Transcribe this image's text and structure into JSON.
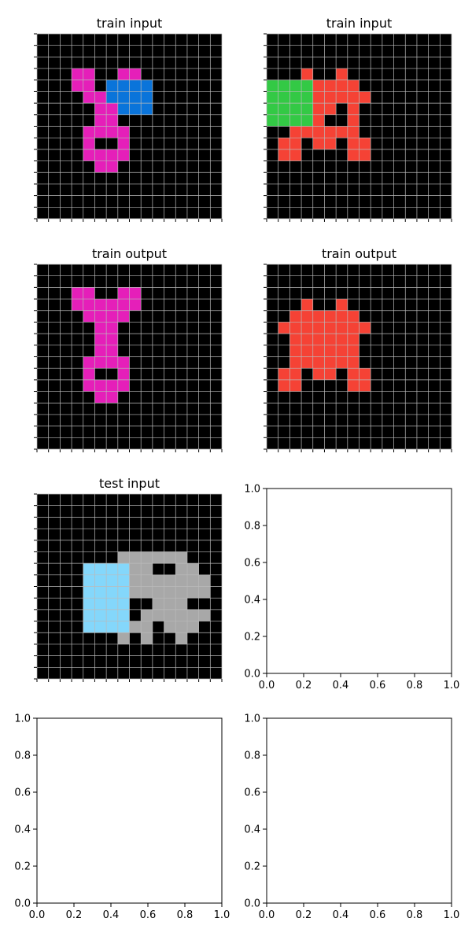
{
  "colors": {
    "background": "#000000",
    "grid_line": "#bbbbbb",
    "magenta": "#e51fb9",
    "blue": "#0a74da",
    "red": "#f54235",
    "green": "#33c945",
    "gray": "#a8a8a8",
    "light_blue": "#84d7fb"
  },
  "grid_size": 16,
  "panels": [
    {
      "title": "train input",
      "cells": {
        "magenta": [
          [
            3,
            3
          ],
          [
            3,
            4
          ],
          [
            3,
            7
          ],
          [
            3,
            8
          ],
          [
            4,
            3
          ],
          [
            4,
            4
          ],
          [
            5,
            4
          ],
          [
            5,
            5
          ],
          [
            6,
            5
          ],
          [
            6,
            6
          ],
          [
            7,
            5
          ],
          [
            7,
            6
          ],
          [
            8,
            4
          ],
          [
            8,
            5
          ],
          [
            8,
            6
          ],
          [
            8,
            7
          ],
          [
            9,
            4
          ],
          [
            9,
            7
          ],
          [
            10,
            4
          ],
          [
            10,
            5
          ],
          [
            10,
            6
          ],
          [
            10,
            7
          ],
          [
            11,
            5
          ],
          [
            11,
            6
          ]
        ],
        "blue": [
          [
            4,
            6
          ],
          [
            4,
            7
          ],
          [
            4,
            8
          ],
          [
            4,
            9
          ],
          [
            5,
            6
          ],
          [
            5,
            7
          ],
          [
            5,
            8
          ],
          [
            5,
            9
          ],
          [
            6,
            7
          ],
          [
            6,
            8
          ],
          [
            6,
            9
          ]
        ]
      }
    },
    {
      "title": "train input",
      "cells": {
        "red": [
          [
            3,
            3
          ],
          [
            3,
            6
          ],
          [
            4,
            4
          ],
          [
            4,
            5
          ],
          [
            4,
            6
          ],
          [
            4,
            7
          ],
          [
            5,
            4
          ],
          [
            5,
            5
          ],
          [
            5,
            6
          ],
          [
            5,
            7
          ],
          [
            5,
            8
          ],
          [
            6,
            4
          ],
          [
            6,
            5
          ],
          [
            6,
            7
          ],
          [
            7,
            4
          ],
          [
            7,
            7
          ],
          [
            8,
            2
          ],
          [
            8,
            3
          ],
          [
            8,
            4
          ],
          [
            8,
            5
          ],
          [
            8,
            6
          ],
          [
            8,
            7
          ],
          [
            9,
            1
          ],
          [
            9,
            2
          ],
          [
            9,
            4
          ],
          [
            9,
            5
          ],
          [
            9,
            7
          ],
          [
            9,
            8
          ],
          [
            10,
            1
          ],
          [
            10,
            2
          ],
          [
            10,
            7
          ],
          [
            10,
            8
          ]
        ],
        "green": [
          [
            4,
            0
          ],
          [
            4,
            1
          ],
          [
            4,
            2
          ],
          [
            4,
            3
          ],
          [
            5,
            0
          ],
          [
            5,
            1
          ],
          [
            5,
            2
          ],
          [
            5,
            3
          ],
          [
            6,
            0
          ],
          [
            6,
            1
          ],
          [
            6,
            2
          ],
          [
            6,
            3
          ],
          [
            7,
            0
          ],
          [
            7,
            1
          ],
          [
            7,
            2
          ],
          [
            7,
            3
          ]
        ]
      }
    },
    {
      "title": "train output",
      "cells": {
        "magenta": [
          [
            2,
            3
          ],
          [
            2,
            4
          ],
          [
            2,
            7
          ],
          [
            2,
            8
          ],
          [
            3,
            3
          ],
          [
            3,
            4
          ],
          [
            3,
            5
          ],
          [
            3,
            6
          ],
          [
            3,
            7
          ],
          [
            3,
            8
          ],
          [
            4,
            4
          ],
          [
            4,
            5
          ],
          [
            4,
            6
          ],
          [
            4,
            7
          ],
          [
            5,
            5
          ],
          [
            5,
            6
          ],
          [
            6,
            5
          ],
          [
            6,
            6
          ],
          [
            7,
            5
          ],
          [
            7,
            6
          ],
          [
            8,
            4
          ],
          [
            8,
            5
          ],
          [
            8,
            6
          ],
          [
            8,
            7
          ],
          [
            9,
            4
          ],
          [
            9,
            7
          ],
          [
            10,
            4
          ],
          [
            10,
            5
          ],
          [
            10,
            6
          ],
          [
            10,
            7
          ],
          [
            11,
            5
          ],
          [
            11,
            6
          ]
        ]
      }
    },
    {
      "title": "train output",
      "cells": {
        "red": [
          [
            3,
            3
          ],
          [
            3,
            6
          ],
          [
            4,
            2
          ],
          [
            4,
            3
          ],
          [
            4,
            4
          ],
          [
            4,
            5
          ],
          [
            4,
            6
          ],
          [
            4,
            7
          ],
          [
            5,
            1
          ],
          [
            5,
            2
          ],
          [
            5,
            3
          ],
          [
            5,
            4
          ],
          [
            5,
            5
          ],
          [
            5,
            6
          ],
          [
            5,
            7
          ],
          [
            5,
            8
          ],
          [
            6,
            2
          ],
          [
            6,
            3
          ],
          [
            6,
            4
          ],
          [
            6,
            5
          ],
          [
            6,
            6
          ],
          [
            6,
            7
          ],
          [
            7,
            2
          ],
          [
            7,
            3
          ],
          [
            7,
            4
          ],
          [
            7,
            5
          ],
          [
            7,
            6
          ],
          [
            7,
            7
          ],
          [
            8,
            2
          ],
          [
            8,
            3
          ],
          [
            8,
            4
          ],
          [
            8,
            5
          ],
          [
            8,
            6
          ],
          [
            8,
            7
          ],
          [
            9,
            1
          ],
          [
            9,
            2
          ],
          [
            9,
            4
          ],
          [
            9,
            5
          ],
          [
            9,
            7
          ],
          [
            9,
            8
          ],
          [
            10,
            1
          ],
          [
            10,
            2
          ],
          [
            10,
            7
          ],
          [
            10,
            8
          ]
        ]
      }
    },
    {
      "title": "test input",
      "cells": {
        "gray": [
          [
            5,
            7
          ],
          [
            5,
            8
          ],
          [
            5,
            9
          ],
          [
            5,
            10
          ],
          [
            5,
            11
          ],
          [
            5,
            12
          ],
          [
            6,
            8
          ],
          [
            6,
            9
          ],
          [
            6,
            12
          ],
          [
            6,
            13
          ],
          [
            7,
            8
          ],
          [
            7,
            9
          ],
          [
            7,
            10
          ],
          [
            7,
            11
          ],
          [
            7,
            12
          ],
          [
            7,
            13
          ],
          [
            7,
            14
          ],
          [
            8,
            8
          ],
          [
            8,
            9
          ],
          [
            8,
            10
          ],
          [
            8,
            11
          ],
          [
            8,
            12
          ],
          [
            8,
            13
          ],
          [
            8,
            14
          ],
          [
            9,
            10
          ],
          [
            9,
            11
          ],
          [
            9,
            12
          ],
          [
            10,
            9
          ],
          [
            10,
            10
          ],
          [
            10,
            11
          ],
          [
            10,
            12
          ],
          [
            10,
            13
          ],
          [
            10,
            14
          ],
          [
            11,
            6
          ],
          [
            11,
            7
          ],
          [
            11,
            8
          ],
          [
            11,
            9
          ],
          [
            11,
            11
          ],
          [
            11,
            12
          ],
          [
            11,
            13
          ],
          [
            12,
            7
          ],
          [
            12,
            9
          ],
          [
            12,
            12
          ]
        ],
        "light_blue": [
          [
            6,
            4
          ],
          [
            6,
            5
          ],
          [
            6,
            6
          ],
          [
            6,
            7
          ],
          [
            7,
            4
          ],
          [
            7,
            5
          ],
          [
            7,
            6
          ],
          [
            7,
            7
          ],
          [
            8,
            4
          ],
          [
            8,
            5
          ],
          [
            8,
            6
          ],
          [
            8,
            7
          ],
          [
            9,
            4
          ],
          [
            9,
            5
          ],
          [
            9,
            6
          ],
          [
            9,
            7
          ],
          [
            10,
            4
          ],
          [
            10,
            5
          ],
          [
            10,
            6
          ],
          [
            10,
            7
          ],
          [
            11,
            4
          ],
          [
            11,
            5
          ],
          [
            11,
            6
          ],
          [
            11,
            7
          ]
        ]
      }
    }
  ],
  "empty_axes": {
    "ticks": [
      "0.0",
      "0.2",
      "0.4",
      "0.6",
      "0.8",
      "1.0"
    ]
  }
}
